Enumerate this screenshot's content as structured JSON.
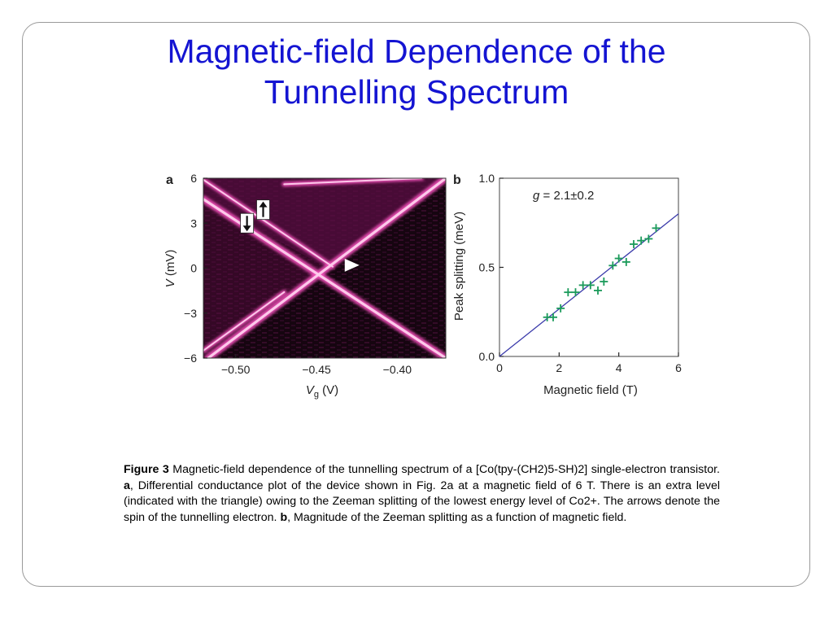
{
  "slide": {
    "title_line1": "Magnetic-field Dependence of the",
    "title_line2": "Tunnelling Spectrum",
    "title_color": "#1414d2"
  },
  "chart_data": [
    {
      "panel": "a",
      "type": "heatmap",
      "colormap": [
        "#160510",
        "#5a0d43",
        "#b21a82",
        "#f050b8",
        "#ffd0ee"
      ],
      "xlabel_main": "V",
      "xlabel_sub": "g",
      "xlabel_unit": " (V)",
      "ylabel_main": "V",
      "ylabel_unit": " (mV)",
      "xlim": [
        -0.52,
        -0.37
      ],
      "ylim": [
        -6,
        6
      ],
      "xticks": [
        -0.5,
        -0.45,
        -0.4
      ],
      "xtick_labels": [
        "−0.50",
        "−0.45",
        "−0.40"
      ],
      "yticks": [
        6,
        3,
        0,
        -3,
        -6
      ],
      "ytick_labels": [
        "6",
        "3",
        "0",
        "−3",
        "−6"
      ],
      "lines": [
        {
          "name": "diamond-edge-falling",
          "x": [
            -0.52,
            -0.37
          ],
          "y": [
            4.6,
            -6.0
          ]
        },
        {
          "name": "diamond-edge-rising",
          "x": [
            -0.517,
            -0.37
          ],
          "y": [
            -6.0,
            6.0
          ]
        },
        {
          "name": "excited-level",
          "x": [
            -0.52,
            -0.44
          ],
          "y": [
            5.9,
            0.1
          ]
        },
        {
          "name": "upper-branch",
          "x": [
            -0.47,
            -0.385
          ],
          "y": [
            5.6,
            6.0
          ]
        },
        {
          "name": "lower-branch",
          "x": [
            -0.52,
            -0.47
          ],
          "y": [
            -5.5,
            -1.6
          ]
        }
      ],
      "annotations": {
        "triangle": {
          "x": -0.428,
          "y": 0.2
        },
        "arrow_up": {
          "x": -0.483,
          "y": 3.9
        },
        "arrow_down": {
          "x": -0.493,
          "y": 3.0
        }
      }
    },
    {
      "panel": "b",
      "type": "scatter",
      "xlabel": "Magnetic field (T)",
      "ylabel": "Peak splitting (meV)",
      "xlim": [
        0,
        6
      ],
      "ylim": [
        0,
        1.0
      ],
      "xticks": [
        0,
        2,
        4,
        6
      ],
      "xtick_labels": [
        "0",
        "2",
        "4",
        "6"
      ],
      "yticks": [
        0.0,
        0.5,
        1.0
      ],
      "ytick_labels": [
        "0.0",
        "0.5",
        "1.0"
      ],
      "annotation_prefix": "g",
      "annotation_value": " = 2.1±0.2",
      "series": [
        {
          "marker": "+",
          "color": "#1a9a5a",
          "x": [
            1.6,
            1.8,
            2.05,
            2.3,
            2.55,
            2.8,
            3.05,
            3.3,
            3.5,
            3.8,
            4.0,
            4.25,
            4.5,
            4.75,
            5.0,
            5.25
          ],
          "y": [
            0.22,
            0.22,
            0.27,
            0.36,
            0.36,
            0.4,
            0.4,
            0.37,
            0.42,
            0.51,
            0.55,
            0.53,
            0.63,
            0.65,
            0.66,
            0.72
          ]
        }
      ],
      "fit": {
        "color": "#3a3aaa",
        "x": [
          0,
          6
        ],
        "y": [
          0,
          0.8
        ]
      }
    }
  ],
  "panel_labels": {
    "a": "a",
    "b": "b"
  },
  "caption": {
    "figure_label": "Figure 3",
    "part1": " Magnetic-field dependence of the tunnelling spectrum of a [Co(tpy-(CH2)5-SH)2] single-electron transistor. ",
    "label_a": "a",
    "part2": ", Differential conductance plot of the device shown in Fig. 2a at a magnetic field of 6 T. There is an extra level (indicated with the triangle) owing to the Zeeman splitting of the lowest energy level of Co2+. The arrows denote the spin of the tunnelling electron. ",
    "label_b": "b",
    "part3": ", Magnitude of the Zeeman splitting as a function of magnetic field."
  }
}
